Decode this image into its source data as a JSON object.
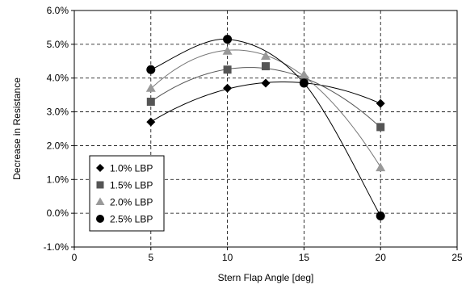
{
  "chart_data": {
    "type": "scatter",
    "xlabel": "Stern Flap Angle [deg]",
    "ylabel": "Decrease in Resistance",
    "xlim": [
      0,
      25
    ],
    "ylim": [
      -1.0,
      6.0
    ],
    "x_ticks": [
      0,
      5,
      10,
      15,
      20,
      25
    ],
    "y_ticks": [
      -1.0,
      0.0,
      1.0,
      2.0,
      3.0,
      4.0,
      5.0,
      6.0
    ],
    "y_tick_format": "percent_1dp",
    "grid": "dashed",
    "legend_position": "bottom-left",
    "series": [
      {
        "name": "1.0% LBP",
        "marker": "diamond",
        "color": "#000000",
        "trend_color": "#000000",
        "x": [
          5,
          10,
          12.5,
          15,
          20
        ],
        "y": [
          2.7,
          3.7,
          3.85,
          3.85,
          3.25
        ]
      },
      {
        "name": "1.5% LBP",
        "marker": "square",
        "color": "#555555",
        "trend_color": "#555555",
        "x": [
          5,
          10,
          12.5,
          15,
          20
        ],
        "y": [
          3.3,
          4.25,
          4.35,
          3.95,
          2.55
        ]
      },
      {
        "name": "2.0% LBP",
        "marker": "triangle",
        "color": "#999999",
        "trend_color": "#777777",
        "x": [
          5,
          10,
          12.5,
          15,
          20
        ],
        "y": [
          3.7,
          4.8,
          4.65,
          4.1,
          1.35
        ]
      },
      {
        "name": "2.5% LBP",
        "marker": "circle",
        "color": "#000000",
        "trend_color": "#000000",
        "x": [
          5,
          10,
          15,
          20
        ],
        "y": [
          4.25,
          5.15,
          3.85,
          -0.08
        ]
      }
    ]
  }
}
